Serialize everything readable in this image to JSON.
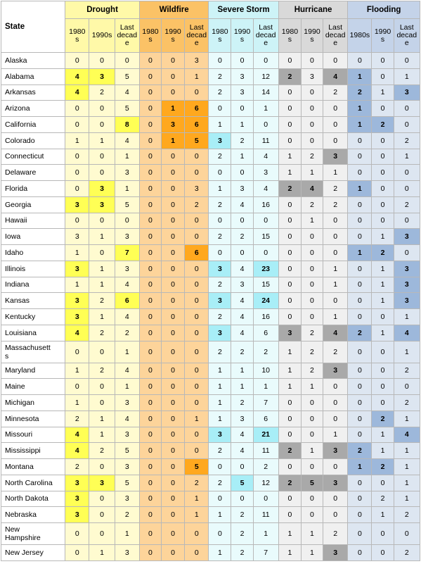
{
  "header": {
    "state_label": "State",
    "groups": [
      "Drought",
      "Wildfire",
      "Severe Storm",
      "Hurricane",
      "Flooding"
    ],
    "subheaders": [
      [
        "1980\ns",
        "1990s",
        "Last\ndecad\ne"
      ],
      [
        "1980\ns",
        "1990\ns",
        "Last\ndecad\ne"
      ],
      [
        "1980\ns",
        "1990\ns",
        "Last\ndecad\ne"
      ],
      [
        "1980\ns",
        "1990\ns",
        "Last\ndecad\ne"
      ],
      [
        "1980s",
        "1990\ns",
        "Last\ndecad\ne"
      ]
    ]
  },
  "rows": [
    {
      "state": "Alaska",
      "values": [
        "0",
        "0",
        "0",
        "0",
        "0",
        "3",
        "0",
        "0",
        "0",
        "0",
        "0",
        "0",
        "0",
        "0",
        "0"
      ],
      "hl": []
    },
    {
      "state": "Alabama",
      "values": [
        "4",
        "3",
        "5",
        "0",
        "0",
        "1",
        "2",
        "3",
        "12",
        "2",
        "3",
        "4",
        "1",
        "0",
        "1"
      ],
      "hl": [
        0,
        1,
        9,
        11,
        12
      ]
    },
    {
      "state": "Arkansas",
      "values": [
        "4",
        "2",
        "4",
        "0",
        "0",
        "0",
        "2",
        "3",
        "14",
        "0",
        "0",
        "2",
        "2",
        "1",
        "3"
      ],
      "hl": [
        0,
        12,
        14
      ]
    },
    {
      "state": "Arizona",
      "values": [
        "0",
        "0",
        "5",
        "0",
        "1",
        "6",
        "0",
        "0",
        "1",
        "0",
        "0",
        "0",
        "1",
        "0",
        "0"
      ],
      "hl": [
        4,
        5,
        12
      ]
    },
    {
      "state": "California",
      "values": [
        "0",
        "0",
        "8",
        "0",
        "3",
        "6",
        "1",
        "1",
        "0",
        "0",
        "0",
        "0",
        "1",
        "2",
        "0"
      ],
      "hl": [
        2,
        4,
        5,
        12,
        13
      ]
    },
    {
      "state": "Colorado",
      "values": [
        "1",
        "1",
        "4",
        "0",
        "1",
        "5",
        "3",
        "2",
        "11",
        "0",
        "0",
        "0",
        "0",
        "0",
        "2"
      ],
      "hl": [
        4,
        5,
        6
      ]
    },
    {
      "state": "Connecticut",
      "values": [
        "0",
        "0",
        "1",
        "0",
        "0",
        "0",
        "2",
        "1",
        "4",
        "1",
        "2",
        "3",
        "0",
        "0",
        "1"
      ],
      "hl": [
        11
      ]
    },
    {
      "state": "Delaware",
      "values": [
        "0",
        "0",
        "3",
        "0",
        "0",
        "0",
        "0",
        "0",
        "3",
        "1",
        "1",
        "1",
        "0",
        "0",
        "0"
      ],
      "hl": []
    },
    {
      "state": "Florida",
      "values": [
        "0",
        "3",
        "1",
        "0",
        "0",
        "3",
        "1",
        "3",
        "4",
        "2",
        "4",
        "2",
        "1",
        "0",
        "0"
      ],
      "hl": [
        1,
        9,
        10,
        12
      ]
    },
    {
      "state": "Georgia",
      "values": [
        "3",
        "3",
        "5",
        "0",
        "0",
        "2",
        "2",
        "4",
        "16",
        "0",
        "2",
        "2",
        "0",
        "0",
        "2"
      ],
      "hl": [
        0,
        1
      ]
    },
    {
      "state": "Hawaii",
      "values": [
        "0",
        "0",
        "0",
        "0",
        "0",
        "0",
        "0",
        "0",
        "0",
        "0",
        "1",
        "0",
        "0",
        "0",
        "0"
      ],
      "hl": []
    },
    {
      "state": "Iowa",
      "values": [
        "3",
        "1",
        "3",
        "0",
        "0",
        "0",
        "2",
        "2",
        "15",
        "0",
        "0",
        "0",
        "0",
        "1",
        "3"
      ],
      "hl": [
        14
      ]
    },
    {
      "state": "Idaho",
      "values": [
        "1",
        "0",
        "7",
        "0",
        "0",
        "6",
        "0",
        "0",
        "0",
        "0",
        "0",
        "0",
        "1",
        "2",
        "0"
      ],
      "hl": [
        2,
        5,
        12,
        13
      ]
    },
    {
      "state": "Illinois",
      "values": [
        "3",
        "1",
        "3",
        "0",
        "0",
        "0",
        "3",
        "4",
        "23",
        "0",
        "0",
        "1",
        "0",
        "1",
        "3"
      ],
      "hl": [
        0,
        6,
        8,
        14
      ]
    },
    {
      "state": "Indiana",
      "values": [
        "1",
        "1",
        "4",
        "0",
        "0",
        "0",
        "2",
        "3",
        "15",
        "0",
        "0",
        "1",
        "0",
        "1",
        "3"
      ],
      "hl": [
        14
      ]
    },
    {
      "state": "Kansas",
      "values": [
        "3",
        "2",
        "6",
        "0",
        "0",
        "0",
        "3",
        "4",
        "24",
        "0",
        "0",
        "0",
        "0",
        "1",
        "3"
      ],
      "hl": [
        0,
        2,
        6,
        8,
        14
      ]
    },
    {
      "state": "Kentucky",
      "values": [
        "3",
        "1",
        "4",
        "0",
        "0",
        "0",
        "2",
        "4",
        "16",
        "0",
        "0",
        "1",
        "0",
        "0",
        "1"
      ],
      "hl": [
        0
      ]
    },
    {
      "state": "Louisiana",
      "values": [
        "4",
        "2",
        "2",
        "0",
        "0",
        "0",
        "3",
        "4",
        "6",
        "3",
        "2",
        "4",
        "2",
        "1",
        "4"
      ],
      "hl": [
        0,
        6,
        9,
        11,
        12,
        14
      ]
    },
    {
      "state": "Massachusett\ns",
      "values": [
        "0",
        "0",
        "1",
        "0",
        "0",
        "0",
        "2",
        "2",
        "2",
        "1",
        "2",
        "2",
        "0",
        "0",
        "1"
      ],
      "hl": [],
      "tall": true
    },
    {
      "state": "Maryland",
      "values": [
        "1",
        "2",
        "4",
        "0",
        "0",
        "0",
        "1",
        "1",
        "10",
        "1",
        "2",
        "3",
        "0",
        "0",
        "2"
      ],
      "hl": [
        11
      ]
    },
    {
      "state": "Maine",
      "values": [
        "0",
        "0",
        "1",
        "0",
        "0",
        "0",
        "1",
        "1",
        "1",
        "1",
        "1",
        "0",
        "0",
        "0",
        "0"
      ],
      "hl": []
    },
    {
      "state": "Michigan",
      "values": [
        "1",
        "0",
        "3",
        "0",
        "0",
        "0",
        "1",
        "2",
        "7",
        "0",
        "0",
        "0",
        "0",
        "0",
        "2"
      ],
      "hl": []
    },
    {
      "state": "Minnesota",
      "values": [
        "2",
        "1",
        "4",
        "0",
        "0",
        "1",
        "1",
        "3",
        "6",
        "0",
        "0",
        "0",
        "0",
        "2",
        "1"
      ],
      "hl": [
        13
      ]
    },
    {
      "state": "Missouri",
      "values": [
        "4",
        "1",
        "3",
        "0",
        "0",
        "0",
        "3",
        "4",
        "21",
        "0",
        "0",
        "1",
        "0",
        "1",
        "4"
      ],
      "hl": [
        0,
        6,
        8,
        14
      ]
    },
    {
      "state": "Mississippi",
      "values": [
        "4",
        "2",
        "5",
        "0",
        "0",
        "0",
        "2",
        "4",
        "11",
        "2",
        "1",
        "3",
        "2",
        "1",
        "1"
      ],
      "hl": [
        0,
        9,
        11,
        12
      ]
    },
    {
      "state": "Montana",
      "values": [
        "2",
        "0",
        "3",
        "0",
        "0",
        "5",
        "0",
        "0",
        "2",
        "0",
        "0",
        "0",
        "1",
        "2",
        "1"
      ],
      "hl": [
        5,
        12,
        13
      ]
    },
    {
      "state": "North Carolina",
      "values": [
        "3",
        "3",
        "5",
        "0",
        "0",
        "2",
        "2",
        "5",
        "12",
        "2",
        "5",
        "3",
        "0",
        "0",
        "1"
      ],
      "hl": [
        0,
        1,
        7,
        9,
        10,
        11
      ]
    },
    {
      "state": "North Dakota",
      "values": [
        "3",
        "0",
        "3",
        "0",
        "0",
        "1",
        "0",
        "0",
        "0",
        "0",
        "0",
        "0",
        "0",
        "2",
        "1"
      ],
      "hl": [
        0
      ]
    },
    {
      "state": "Nebraska",
      "values": [
        "3",
        "0",
        "2",
        "0",
        "0",
        "1",
        "1",
        "2",
        "11",
        "0",
        "0",
        "0",
        "0",
        "1",
        "2"
      ],
      "hl": [
        0
      ]
    },
    {
      "state": "New\nHampshire",
      "values": [
        "0",
        "0",
        "1",
        "0",
        "0",
        "0",
        "0",
        "2",
        "1",
        "1",
        "1",
        "2",
        "0",
        "0",
        "0"
      ],
      "hl": [],
      "tall": true
    },
    {
      "state": "New Jersey",
      "values": [
        "0",
        "1",
        "3",
        "0",
        "0",
        "0",
        "1",
        "2",
        "7",
        "1",
        "1",
        "3",
        "0",
        "0",
        "2"
      ],
      "hl": [
        11
      ]
    }
  ]
}
